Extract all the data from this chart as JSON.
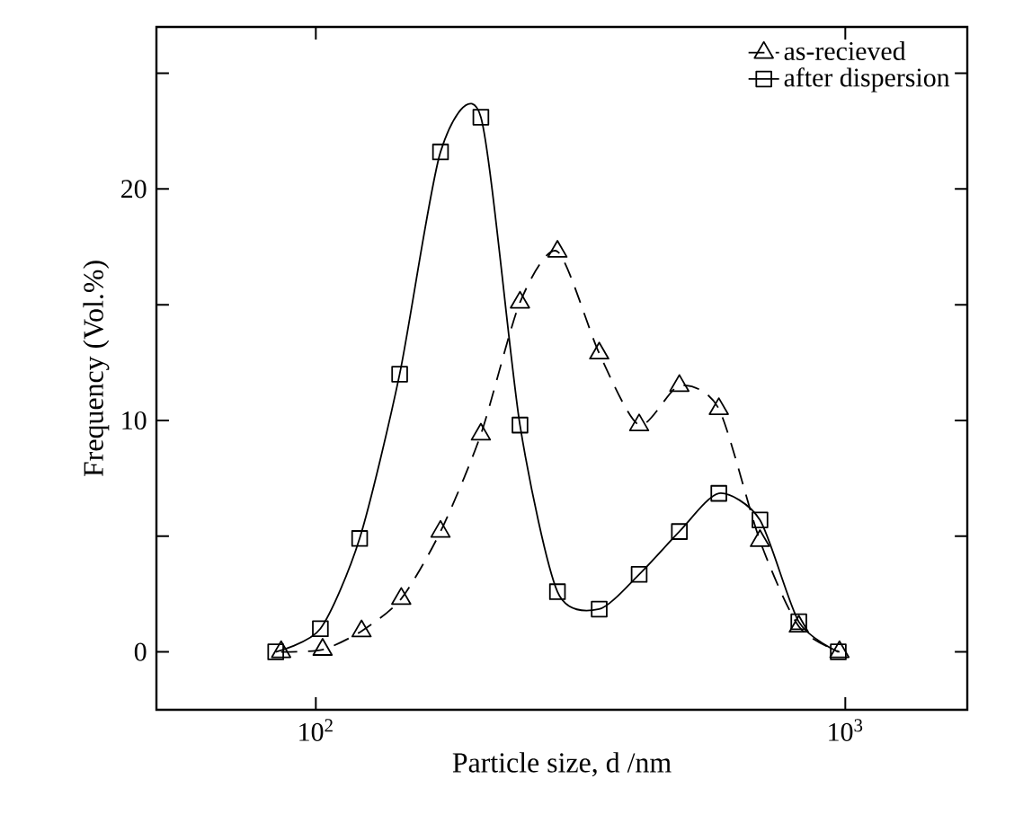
{
  "chart_data": {
    "type": "line",
    "xlabel": "Particle size, d /nm",
    "ylabel": "Frequency (Vol.%)",
    "log": "x",
    "legend": "top right",
    "xlim": [
      50,
      1700
    ],
    "ylim": [
      -2.5,
      27
    ],
    "xticks": [
      {
        "value": 100,
        "label": "10$^{2}$"
      },
      {
        "value": 1000,
        "label": "10$^{3}$"
      }
    ],
    "yticks": [
      0,
      {
        "value": 5,
        "label": null
      },
      10,
      {
        "value": 15,
        "label": null
      },
      20,
      {
        "value": 25,
        "label": null
      }
    ],
    "series": [
      {
        "name": "as-recieved",
        "color": "#000000",
        "marker": "triangle",
        "line_style": "dashed",
        "x": [
          86,
          103,
          122,
          145,
          172,
          205,
          243,
          286,
          343,
          408,
          486,
          577,
          690,
          817,
          975
        ],
        "values": [
          0,
          0.1,
          0.9,
          2.3,
          5.2,
          9.4,
          15.1,
          17.3,
          12.9,
          9.8,
          11.5,
          10.5,
          4.8,
          1.1,
          0
        ]
      },
      {
        "name": "after dispersion",
        "color": "#000000",
        "marker": "square",
        "line_style": "solid",
        "x": [
          84,
          102,
          121,
          144,
          172,
          205,
          243,
          286,
          343,
          408,
          486,
          577,
          690,
          817,
          970
        ],
        "values": [
          0,
          1.0,
          4.9,
          12.0,
          21.6,
          23.1,
          9.8,
          2.6,
          1.85,
          3.35,
          5.2,
          6.85,
          5.7,
          1.3,
          0
        ]
      }
    ]
  }
}
